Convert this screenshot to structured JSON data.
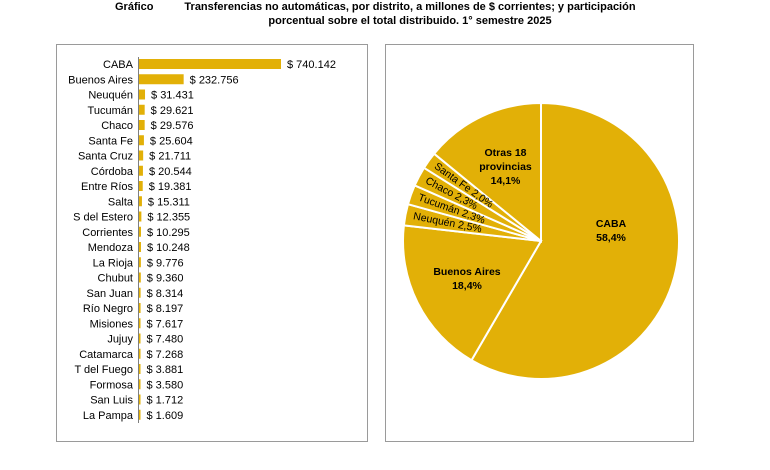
{
  "title": {
    "label": "Gráfico",
    "line1": "Transferencias no automáticas, por distrito, a millones de $ corrientes; y participación",
    "line2": "porcentual sobre el total distribuido. 1° semestre 2025"
  },
  "colors": {
    "bar": "#e2b007",
    "pie": "#e2b007",
    "stroke": "#ffffff",
    "axis": "#7f7f7f"
  },
  "chart_data": [
    {
      "type": "bar",
      "orientation": "horizontal",
      "categories": [
        "CABA",
        "Buenos Aires",
        "Neuquén",
        "Tucumán",
        "Chaco",
        "Santa Fe",
        "Santa Cruz",
        "Córdoba",
        "Entre Ríos",
        "Salta",
        "S del Estero",
        "Corrientes",
        "Mendoza",
        "La Rioja",
        "Chubut",
        "San Juan",
        "Río Negro",
        "Misiones",
        "Jujuy",
        "Catamarca",
        "T del Fuego",
        "Formosa",
        "San Luis",
        "La Pampa"
      ],
      "values": [
        740142,
        232756,
        31431,
        29621,
        29576,
        25604,
        21711,
        20544,
        19381,
        15311,
        12355,
        10295,
        10248,
        9776,
        9360,
        8314,
        8197,
        7617,
        7480,
        7268,
        3881,
        3580,
        1712,
        1609
      ],
      "value_labels": [
        "$ 740.142",
        "$ 232.756",
        "$ 31.431",
        "$ 29.621",
        "$ 29.576",
        "$ 25.604",
        "$ 21.711",
        "$ 20.544",
        "$ 19.381",
        "$ 15.311",
        "$ 12.355",
        "$ 10.295",
        "$ 10.248",
        "$ 9.776",
        "$ 9.360",
        "$ 8.314",
        "$ 8.197",
        "$ 7.617",
        "$ 7.480",
        "$ 7.268",
        "$ 3.881",
        "$ 3.580",
        "$ 1.712",
        "$ 1.609"
      ]
    },
    {
      "type": "pie",
      "start": "top",
      "direction": "clockwise",
      "slices": [
        {
          "label": "CABA",
          "value_label": "58,4%",
          "value": 58.4,
          "label_style": "center"
        },
        {
          "label": "Buenos Aires",
          "value_label": "18,4%",
          "value": 18.4,
          "label_style": "center"
        },
        {
          "label": "Neuquén",
          "value_label": "2,5%",
          "value": 2.5,
          "label_style": "radial"
        },
        {
          "label": "Tucumán",
          "value_label": "2,3%",
          "value": 2.3,
          "label_style": "radial"
        },
        {
          "label": "Chaco",
          "value_label": "2,3%",
          "value": 2.3,
          "label_style": "radial"
        },
        {
          "label": "Santa Fe",
          "value_label": "2,0%",
          "value": 2.0,
          "label_style": "radial"
        },
        {
          "label": "Otras 18 provincias",
          "label_lines": [
            "Otras 18",
            "provincias"
          ],
          "value_label": "14,1%",
          "value": 14.1,
          "label_style": "center"
        }
      ]
    }
  ]
}
